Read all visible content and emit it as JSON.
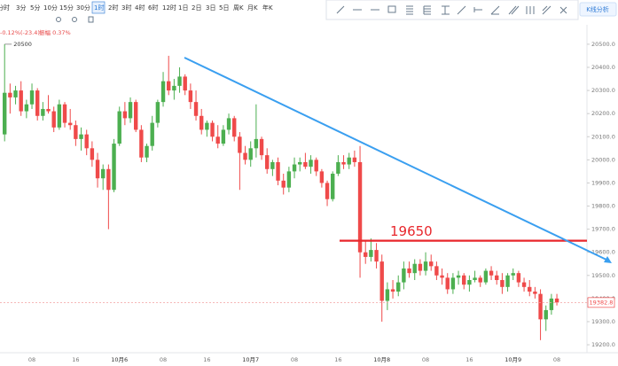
{
  "toolbar": {
    "intervals": [
      "分时",
      "3分",
      "5分",
      "10分",
      "15分",
      "30分",
      "1时",
      "2时",
      "3时",
      "4时",
      "6时",
      "12时",
      "1日",
      "2日",
      "3日",
      "5日",
      "周K",
      "月K",
      "年K"
    ],
    "selected": 6,
    "analysis_button": "K线分析"
  },
  "info": {
    "change": "-0.12%(-23.4)",
    "amplitude": "振幅 0.37%"
  },
  "chart_data": {
    "type": "candlestick",
    "categories": [
      null,
      null,
      null,
      null,
      null,
      "08",
      null,
      null,
      null,
      null,
      null,
      null,
      null,
      "16",
      null,
      null,
      null,
      null,
      null,
      null,
      null,
      "10月6",
      null,
      null,
      null,
      null,
      null,
      null,
      null,
      "08",
      null,
      null,
      null,
      null,
      null,
      null,
      null,
      "16",
      null,
      null,
      null,
      null,
      null,
      null,
      null,
      "10月7",
      null,
      null,
      null,
      null,
      null,
      null,
      null,
      "08",
      null,
      null,
      null,
      null,
      null,
      null,
      null,
      "16",
      null,
      null,
      null,
      null,
      null,
      null,
      null,
      "10月8",
      null,
      null,
      null,
      null,
      null,
      null,
      null,
      "08",
      null,
      null,
      null,
      null,
      null,
      null,
      null,
      "16",
      null,
      null,
      null,
      null,
      null,
      null,
      null,
      "10月9",
      null,
      null,
      null,
      null,
      null,
      null,
      null,
      "08"
    ],
    "open": [
      20110,
      20290,
      20270,
      20300,
      20210,
      20240,
      20300,
      20190,
      20220,
      20210,
      20140,
      20240,
      20160,
      20150,
      20090,
      20110,
      20050,
      20000,
      19920,
      19960,
      19870,
      20070,
      20210,
      20180,
      20250,
      20130,
      20010,
      20060,
      20160,
      20250,
      20340,
      20300,
      20320,
      20360,
      20300,
      20250,
      20190,
      20130,
      20160,
      20100,
      20070,
      20130,
      20180,
      20100,
      20030,
      20000,
      20050,
      20090,
      20020,
      19960,
      19990,
      19910,
      19880,
      19950,
      19980,
      19990,
      19970,
      20000,
      19950,
      19900,
      19830,
      19940,
      19990,
      19980,
      20010,
      19990,
      19600,
      19580,
      19610,
      19560,
      19390,
      19440,
      19430,
      19470,
      19530,
      19510,
      19550,
      19520,
      19560,
      19540,
      19500,
      19490,
      19440,
      19490,
      19500,
      19460,
      19480,
      19490,
      19470,
      19520,
      19500,
      19480,
      19450,
      19500,
      19510,
      19470,
      19450,
      19430,
      19420,
      19310,
      19350,
      19400
    ],
    "high": [
      20500,
      20330,
      20320,
      20340,
      20260,
      20330,
      20310,
      20250,
      20280,
      20230,
      20260,
      20250,
      20220,
      20170,
      20140,
      20130,
      20080,
      20030,
      19980,
      19980,
      20090,
      20230,
      20250,
      20270,
      20260,
      20150,
      20070,
      20190,
      20260,
      20380,
      20450,
      20350,
      20400,
      20370,
      20330,
      20300,
      20220,
      20170,
      20170,
      20150,
      20150,
      20200,
      20190,
      20120,
      20060,
      20080,
      20240,
      20100,
      20050,
      20000,
      20010,
      19940,
      19970,
      20010,
      20010,
      20030,
      20020,
      20010,
      19960,
      19910,
      19950,
      20020,
      20020,
      20030,
      20040,
      20060,
      19650,
      19660,
      19640,
      19590,
      19470,
      19480,
      19500,
      19560,
      19560,
      19570,
      19570,
      19600,
      19590,
      19560,
      19530,
      19510,
      19510,
      19520,
      19510,
      19500,
      19520,
      19500,
      19530,
      19540,
      19520,
      19510,
      19510,
      19530,
      19520,
      19490,
      19480,
      19450,
      19440,
      19370,
      19420,
      19420
    ],
    "low": [
      20080,
      20200,
      20240,
      20190,
      20180,
      20220,
      20170,
      20170,
      20200,
      20120,
      20130,
      20140,
      20130,
      20060,
      20040,
      20020,
      19970,
      19880,
      19870,
      19700,
      19860,
      20060,
      20150,
      20160,
      20120,
      19990,
      19990,
      20040,
      20140,
      20230,
      20280,
      20260,
      20290,
      20280,
      20220,
      20170,
      20110,
      20100,
      20080,
      20050,
      20060,
      20110,
      20080,
      19870,
      19980,
      19970,
      20010,
      20000,
      19940,
      19930,
      19890,
      19850,
      19860,
      19920,
      19950,
      19960,
      19940,
      19930,
      19880,
      19800,
      19820,
      19930,
      19960,
      19960,
      19970,
      19490,
      19550,
      19560,
      19530,
      19300,
      19350,
      19400,
      19410,
      19440,
      19490,
      19480,
      19500,
      19500,
      19520,
      19480,
      19460,
      19420,
      19420,
      19460,
      19440,
      19430,
      19470,
      19450,
      19460,
      19480,
      19460,
      19420,
      19430,
      19480,
      19450,
      19430,
      19410,
      19400,
      19220,
      19260,
      19330,
      19370
    ],
    "close": [
      20290,
      20270,
      20300,
      20210,
      20240,
      20300,
      20190,
      20220,
      20210,
      20140,
      20240,
      20160,
      20150,
      20090,
      20110,
      20050,
      20000,
      19920,
      19960,
      19870,
      20070,
      20210,
      20180,
      20250,
      20130,
      20010,
      20060,
      20160,
      20250,
      20340,
      20300,
      20320,
      20360,
      20300,
      20250,
      20190,
      20130,
      20160,
      20100,
      20070,
      20130,
      20180,
      20100,
      20030,
      20000,
      20050,
      20090,
      20020,
      19960,
      19990,
      19910,
      19880,
      19950,
      19980,
      19990,
      19970,
      20000,
      19950,
      19900,
      19830,
      19940,
      19990,
      19980,
      20010,
      19990,
      19600,
      19580,
      19610,
      19560,
      19390,
      19440,
      19430,
      19470,
      19530,
      19510,
      19550,
      19520,
      19560,
      19540,
      19500,
      19490,
      19440,
      19490,
      19500,
      19460,
      19480,
      19490,
      19470,
      19520,
      19500,
      19480,
      19450,
      19500,
      19510,
      19470,
      19450,
      19430,
      19420,
      19310,
      19350,
      19400,
      19382.8
    ],
    "up_color": "#4caf50",
    "down_color": "#ef4a4a",
    "ylim": [
      19158,
      20584
    ],
    "yticks": [
      {
        "value": 20500,
        "label": "20500.0"
      },
      {
        "value": 20400,
        "label": "20400.0"
      },
      {
        "value": 20300,
        "label": "20300.0"
      },
      {
        "value": 20200,
        "label": "20200.0"
      },
      {
        "value": 20100,
        "label": "20100.0"
      },
      {
        "value": 20000,
        "label": "20000.0"
      },
      {
        "value": 19900,
        "label": "19900.0"
      },
      {
        "value": 19800,
        "label": "19800.0"
      },
      {
        "value": 19700,
        "label": "19700.0"
      },
      {
        "value": 19600,
        "label": "19600.0"
      },
      {
        "value": 19500,
        "label": "19500.0"
      },
      {
        "value": 19400,
        "label": "19400.0"
      },
      {
        "value": 19300,
        "label": "19300.0"
      },
      {
        "value": 19200,
        "label": "19200.0"
      }
    ],
    "grid": false,
    "max_marker": 20500,
    "level": 19650,
    "level_color": "#e8262b",
    "last_price": {
      "value": 19382.8,
      "label": "19382.8"
    }
  }
}
